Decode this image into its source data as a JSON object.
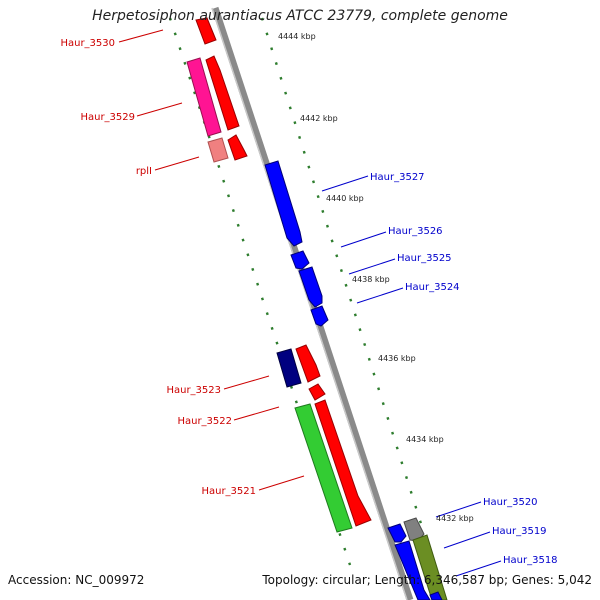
{
  "title": "Herpetosiphon aurantiacus ATCC 23779, complete genome",
  "footer": {
    "accession": "Accession: NC_009972",
    "topology": "Topology: circular; Length: 6,346,587 bp; Genes: 5,042"
  },
  "colors": {
    "backbone": "#8a8a8a",
    "tick_dots": "#2e7d2e",
    "label_forward": "#cc0000",
    "label_reverse": "#0000cc"
  },
  "ticks": [
    "4444 kbp",
    "4442 kbp",
    "4440 kbp",
    "4438 kbp",
    "4436 kbp",
    "4434 kbp",
    "4432 kbp"
  ],
  "genes": [
    {
      "id": "g3530",
      "label": "Haur_3530",
      "strand": "forward",
      "color": "#ff0000"
    },
    {
      "id": "g3529a",
      "label": "Haur_3529",
      "strand": "forward",
      "color": "#ff1493"
    },
    {
      "id": "g3529b",
      "label": "",
      "strand": "forward",
      "color": "#ff0000"
    },
    {
      "id": "grpll_a",
      "label": "rplI",
      "strand": "forward",
      "color": "#f08080"
    },
    {
      "id": "grpll_b",
      "label": "",
      "strand": "forward",
      "color": "#ff0000"
    },
    {
      "id": "g3527",
      "label": "Haur_3527",
      "strand": "reverse",
      "color": "#0000ff"
    },
    {
      "id": "g3526",
      "label": "Haur_3526",
      "strand": "reverse",
      "color": "#0000ff"
    },
    {
      "id": "g3525",
      "label": "Haur_3525",
      "strand": "reverse",
      "color": "#0000ff"
    },
    {
      "id": "g3524",
      "label": "Haur_3524",
      "strand": "reverse",
      "color": "#0000ff"
    },
    {
      "id": "g3523a",
      "label": "Haur_3523",
      "strand": "forward",
      "color": "#000080"
    },
    {
      "id": "g3523b",
      "label": "",
      "strand": "forward",
      "color": "#ff0000"
    },
    {
      "id": "g3522",
      "label": "Haur_3522",
      "strand": "forward",
      "color": "#ff0000"
    },
    {
      "id": "g3521a",
      "label": "Haur_3521",
      "strand": "forward",
      "color": "#33cc33"
    },
    {
      "id": "g3521b",
      "label": "",
      "strand": "forward",
      "color": "#ff0000"
    },
    {
      "id": "g3520",
      "label": "Haur_3520",
      "strand": "reverse",
      "color": "#808080"
    },
    {
      "id": "g3519",
      "label": "Haur_3519",
      "strand": "reverse",
      "color": "#0000ff"
    },
    {
      "id": "g3518",
      "label": "Haur_3518",
      "strand": "reverse",
      "color": "#6b8e23"
    }
  ]
}
